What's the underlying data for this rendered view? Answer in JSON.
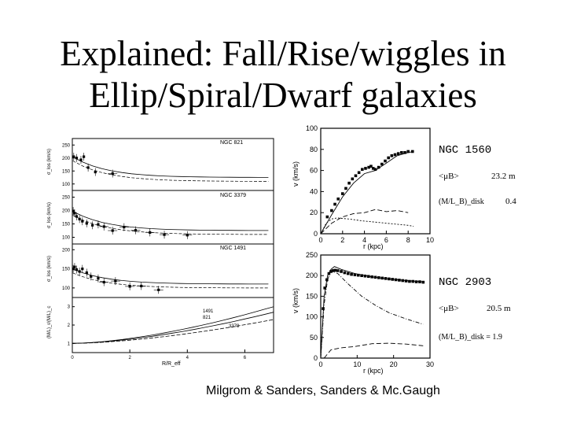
{
  "slide": {
    "title_line1": "Explained: Fall/Rise/wiggles in",
    "title_line2": "Ellip/Spiral/Dwarf galaxies",
    "caption": "Milgrom & Sanders, Sanders & Mc.Gaugh"
  },
  "left_figure": {
    "panels": [
      {
        "label": "NGC 821",
        "ylabel": "σ_los (km/s)",
        "yticks": [
          "250",
          "200",
          "150",
          "100"
        ],
        "points": [
          [
            0.05,
            205
          ],
          [
            0.15,
            200
          ],
          [
            0.3,
            193
          ],
          [
            0.4,
            205
          ],
          [
            0.55,
            163
          ],
          [
            0.8,
            146
          ],
          [
            1.4,
            140
          ]
        ]
      },
      {
        "label": "NGC 3379",
        "ylabel": "σ_los (km/s)",
        "yticks": [
          "250",
          "200",
          "150",
          "100"
        ],
        "points": [
          [
            0.03,
            198
          ],
          [
            0.08,
            190
          ],
          [
            0.15,
            178
          ],
          [
            0.25,
            168
          ],
          [
            0.35,
            160
          ],
          [
            0.5,
            152
          ],
          [
            0.7,
            145
          ],
          [
            0.9,
            148
          ],
          [
            1.1,
            140
          ],
          [
            1.4,
            125
          ],
          [
            1.8,
            138
          ],
          [
            2.2,
            126
          ],
          [
            2.7,
            118
          ],
          [
            3.2,
            110
          ],
          [
            4.0,
            108
          ]
        ]
      },
      {
        "label": "NGC 1491",
        "ylabel": "σ_los (km/s)",
        "yticks": [
          "200",
          "150",
          "100"
        ],
        "points": [
          [
            0.03,
            150
          ],
          [
            0.08,
            155
          ],
          [
            0.15,
            148
          ],
          [
            0.25,
            143
          ],
          [
            0.35,
            150
          ],
          [
            0.5,
            140
          ],
          [
            0.65,
            130
          ],
          [
            0.9,
            125
          ],
          [
            1.1,
            115
          ],
          [
            1.5,
            118
          ],
          [
            2.0,
            104
          ],
          [
            2.4,
            105
          ],
          [
            3.0,
            95
          ]
        ]
      },
      {
        "label": "",
        "ylabel": "(M/L)_r/(M/L)_c",
        "yticks": [
          "3",
          "2",
          "1"
        ],
        "curve_labels": [
          "1491",
          "821",
          "3379"
        ],
        "points": []
      }
    ],
    "xlabel": "R/R_eff",
    "xticks": [
      "0",
      "2",
      "4",
      "6"
    ]
  },
  "chart_data": [
    {
      "type": "scatter",
      "title": "",
      "galaxy": "NGC 1560",
      "xlabel": "r (kpc)",
      "ylabel": "v (km/s)",
      "xlim": [
        0,
        10
      ],
      "ylim": [
        0,
        100
      ],
      "xticks": [
        "0",
        "2",
        "4",
        "6",
        "8",
        "10"
      ],
      "yticks": [
        "0",
        "20",
        "40",
        "60",
        "80",
        "100"
      ],
      "annotations": [
        "<μB>",
        "23.2 m",
        "(M/L_B)_disk",
        "0.4"
      ],
      "series": [
        {
          "values": [
            [
              0.6,
              16
            ],
            [
              1.0,
              22
            ],
            [
              1.3,
              28
            ],
            [
              1.6,
              33
            ],
            [
              2.0,
              38
            ],
            [
              2.3,
              43
            ],
            [
              2.6,
              48
            ],
            [
              2.9,
              52
            ],
            [
              3.2,
              55
            ],
            [
              3.5,
              58
            ],
            [
              3.8,
              61
            ],
            [
              4.1,
              62
            ],
            [
              4.4,
              63
            ],
            [
              4.6,
              64
            ],
            [
              4.8,
              62
            ],
            [
              5.0,
              61
            ],
            [
              5.3,
              63
            ],
            [
              5.6,
              66
            ],
            [
              5.9,
              69
            ],
            [
              6.2,
              72
            ],
            [
              6.5,
              74
            ],
            [
              6.8,
              75
            ],
            [
              7.1,
              76
            ],
            [
              7.4,
              77
            ],
            [
              7.7,
              77
            ],
            [
              8.0,
              78
            ],
            [
              8.4,
              78
            ]
          ]
        }
      ]
    },
    {
      "type": "scatter",
      "title": "",
      "galaxy": "NGC 2903",
      "xlabel": "r (kpc)",
      "ylabel": "v (km/s)",
      "xlim": [
        0,
        32
      ],
      "ylim": [
        0,
        250
      ],
      "xticks": [
        "0",
        "10",
        "20",
        "30"
      ],
      "yticks": [
        "0",
        "50",
        "100",
        "150",
        "200",
        "250"
      ],
      "annotations": [
        "<μB>",
        "20.5 m",
        "(M/L_B)_disk = 1.9"
      ],
      "series": [
        {
          "values": [
            [
              0.7,
              120
            ],
            [
              1.2,
              170
            ],
            [
              1.8,
              190
            ],
            [
              2.4,
              205
            ],
            [
              3.0,
              210
            ],
            [
              3.6,
              212
            ],
            [
              4.2,
              213
            ],
            [
              5.0,
              212
            ],
            [
              6.0,
              210
            ],
            [
              7.0,
              207
            ],
            [
              8.0,
              205
            ],
            [
              9.0,
              203
            ],
            [
              10.0,
              202
            ],
            [
              11.0,
              201
            ],
            [
              12.0,
              200
            ],
            [
              13.0,
              199
            ],
            [
              14.0,
              198
            ],
            [
              15.0,
              197
            ],
            [
              16.0,
              196
            ],
            [
              17.0,
              195
            ],
            [
              18.0,
              194
            ],
            [
              19.0,
              193
            ],
            [
              20.0,
              192
            ],
            [
              21.0,
              191
            ],
            [
              22.0,
              190
            ],
            [
              23.0,
              189
            ],
            [
              24.0,
              188
            ],
            [
              25.0,
              187
            ],
            [
              26.0,
              186
            ],
            [
              27.0,
              186
            ],
            [
              28.0,
              185
            ],
            [
              29.0,
              185
            ],
            [
              30.0,
              184
            ]
          ]
        }
      ]
    }
  ]
}
